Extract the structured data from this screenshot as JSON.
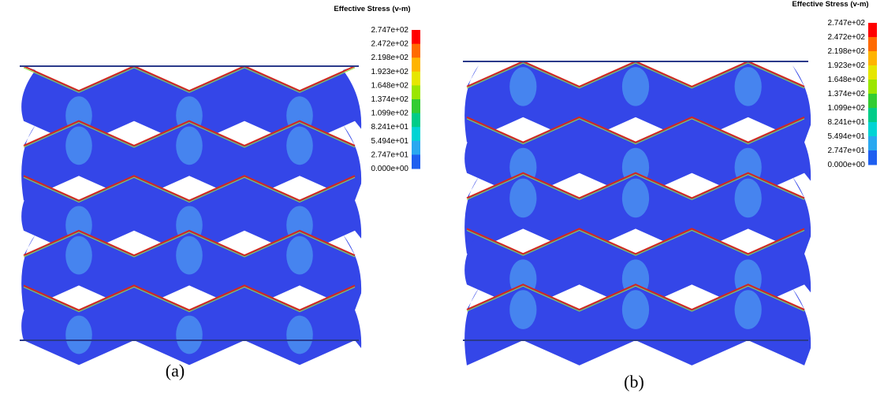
{
  "panels": [
    {
      "legend": {
        "title": "Effective Stress (v-m)",
        "labels": [
          "2.747e+02",
          "2.472e+02",
          "2.198e+02",
          "1.923e+02",
          "1.648e+02",
          "1.374e+02",
          "1.099e+02",
          "8.241e+01",
          "5.494e+01",
          "2.747e+01",
          "0.000e+00"
        ]
      },
      "caption": "(a)"
    },
    {
      "legend": {
        "title": "Effective Stress (v-m)",
        "labels": [
          "2.747e+02",
          "2.472e+02",
          "2.198e+02",
          "1.923e+02",
          "1.648e+02",
          "1.374e+02",
          "1.099e+02",
          "8.241e+01",
          "5.494e+01",
          "2.747e+01",
          "0.000e+00"
        ]
      },
      "caption": "(b)"
    }
  ]
}
